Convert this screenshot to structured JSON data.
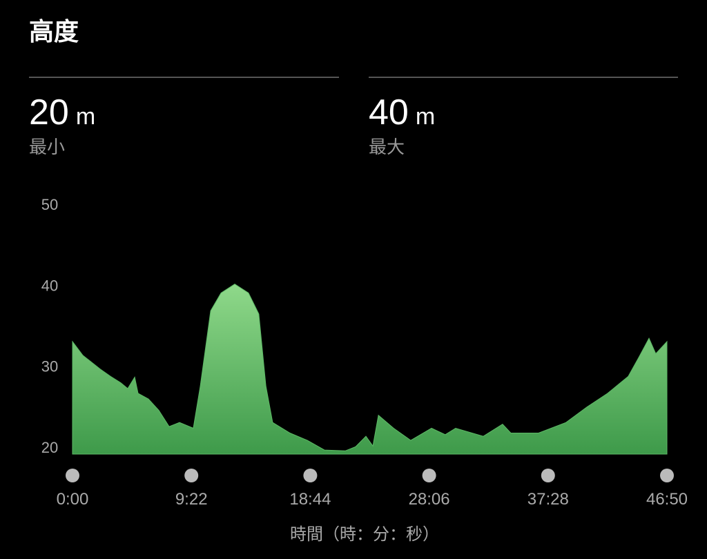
{
  "header": {
    "title": "高度",
    "stats": [
      {
        "value": 20,
        "unit": "m",
        "label": "最小"
      },
      {
        "value": 40,
        "unit": "m",
        "label": "最大"
      }
    ]
  },
  "chart_data": {
    "type": "area",
    "color": "#5cb865",
    "x_label": "時間（時：分：秒）",
    "xlim": [
      0,
      2810
    ],
    "xticks": [
      {
        "value": 0,
        "label": "0:00"
      },
      {
        "value": 562,
        "label": "9:22"
      },
      {
        "value": 1124,
        "label": "18:44"
      },
      {
        "value": 1686,
        "label": "28:06"
      },
      {
        "value": 2248,
        "label": "37:28"
      },
      {
        "value": 2810,
        "label": "46:50"
      }
    ],
    "ylim": [
      20,
      50
    ],
    "yticks": [
      20,
      30,
      40,
      50
    ],
    "x": [
      0,
      49,
      131,
      180,
      228,
      261,
      294,
      310,
      359,
      408,
      457,
      506,
      571,
      604,
      653,
      702,
      767,
      832,
      881,
      914,
      946,
      1028,
      1110,
      1191,
      1289,
      1338,
      1387,
      1420,
      1446,
      1518,
      1599,
      1697,
      1762,
      1811,
      1942,
      2033,
      2072,
      2203,
      2333,
      2431,
      2529,
      2627,
      2676,
      2725,
      2757,
      2810
    ],
    "values": [
      33.9,
      32.2,
      30.5,
      29.6,
      28.8,
      28.1,
      29.5,
      27.5,
      26.8,
      25.4,
      23.4,
      23.9,
      23.2,
      28.4,
      37.7,
      39.9,
      41.0,
      39.9,
      37.3,
      28.4,
      23.9,
      22.6,
      21.7,
      20.5,
      20.4,
      20.9,
      22.2,
      21.0,
      24.8,
      23.2,
      21.7,
      23.2,
      22.4,
      23.2,
      22.2,
      23.7,
      22.6,
      22.6,
      23.9,
      25.8,
      27.5,
      29.6,
      31.9,
      34.3,
      32.4,
      33.9
    ]
  }
}
